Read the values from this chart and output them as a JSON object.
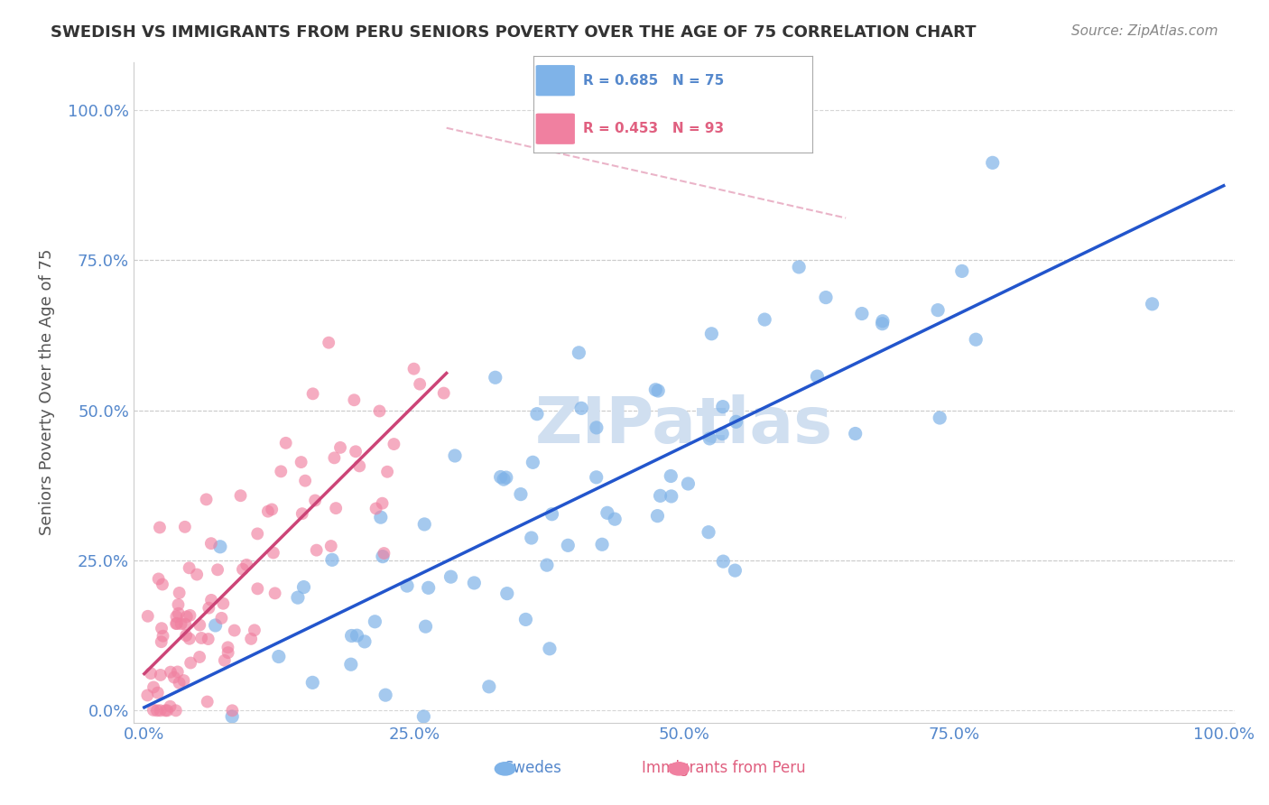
{
  "title": "SWEDISH VS IMMIGRANTS FROM PERU SENIORS POVERTY OVER THE AGE OF 75 CORRELATION CHART",
  "source": "Source: ZipAtlas.com",
  "ylabel": "Seniors Poverty Over the Age of 75",
  "xlabel": "",
  "xlim": [
    0.0,
    1.0
  ],
  "ylim": [
    -0.02,
    1.08
  ],
  "xtick_labels": [
    "0.0%",
    "25.0%",
    "50.0%",
    "75.0%",
    "100.0%"
  ],
  "xtick_positions": [
    0.0,
    0.25,
    0.5,
    0.75,
    1.0
  ],
  "ytick_labels": [
    "0.0%",
    "25.0%",
    "50.0%",
    "75.0%",
    "100.0%"
  ],
  "ytick_positions": [
    0.0,
    0.25,
    0.5,
    0.75,
    1.0
  ],
  "blue_R": 0.685,
  "blue_N": 75,
  "pink_R": 0.453,
  "pink_N": 93,
  "blue_color": "#7fb3e8",
  "pink_color": "#f4a0b5",
  "blue_line_color": "#2255cc",
  "pink_line_color": "#cc4477",
  "blue_scatter_color": "#7fb3e8",
  "pink_scatter_color": "#f080a0",
  "watermark": "ZIPatlas",
  "watermark_color": "#d0dff0",
  "background_color": "#ffffff",
  "grid_color": "#cccccc",
  "title_color": "#333333",
  "axis_label_color": "#5588cc",
  "legend_box_blue": "#aaccee",
  "legend_box_pink": "#f4a0b5",
  "seed_blue": 42,
  "seed_pink": 99
}
